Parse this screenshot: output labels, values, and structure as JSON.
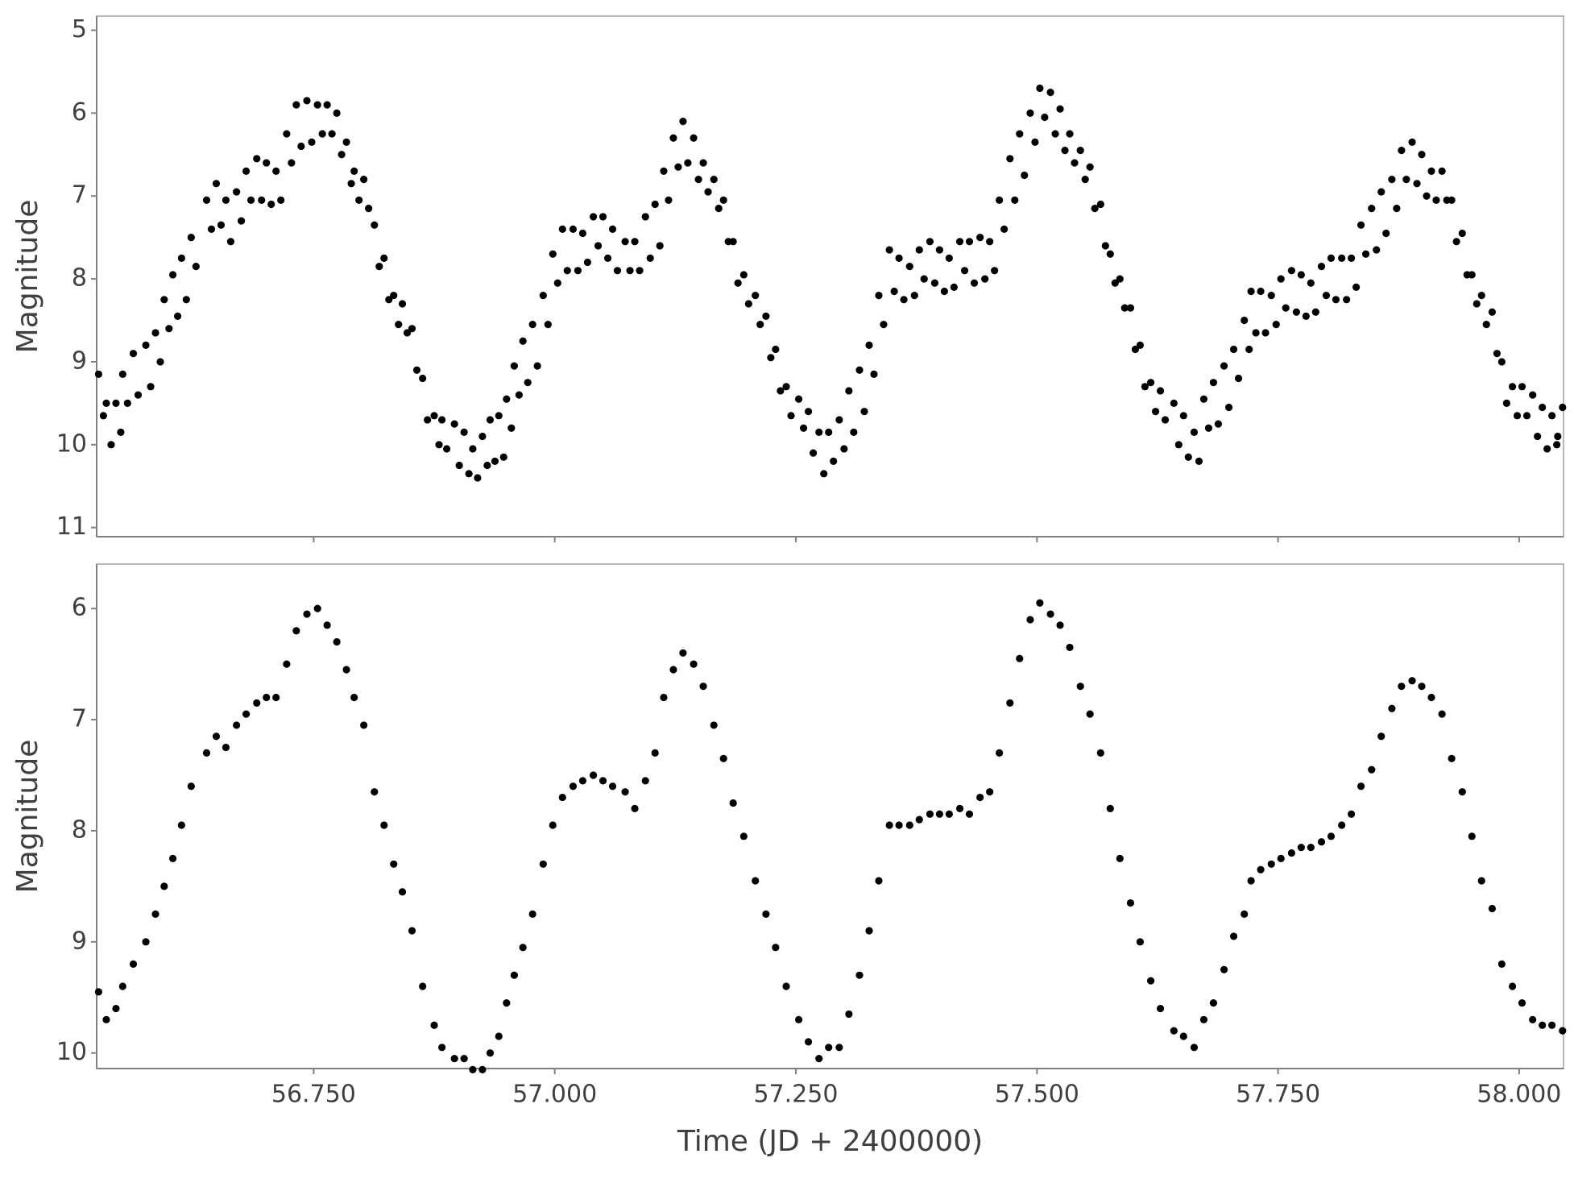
{
  "chart_data": [
    {
      "type": "scatter",
      "y_label": "Magnitude",
      "color": "#000000",
      "xlim": [
        56.525,
        58.046
      ],
      "ylim": [
        11.11,
        4.83
      ],
      "xticks": [
        56.75,
        57,
        57.25,
        57.5,
        57.75,
        58
      ],
      "xtick_labels": false,
      "yticks": [
        5,
        6,
        7,
        8,
        9,
        10,
        11
      ],
      "x": [
        56.527,
        56.532,
        56.535,
        56.54,
        56.545,
        56.55,
        56.552,
        56.557,
        56.563,
        56.568,
        56.576,
        56.581,
        56.586,
        56.591,
        56.595,
        56.6,
        56.604,
        56.609,
        56.613,
        56.618,
        56.623,
        56.628,
        56.639,
        56.644,
        56.649,
        56.654,
        56.659,
        56.664,
        56.67,
        56.675,
        56.68,
        56.685,
        56.691,
        56.696,
        56.701,
        56.706,
        56.711,
        56.716,
        56.722,
        56.727,
        56.732,
        56.737,
        56.743,
        56.748,
        56.754,
        56.759,
        56.764,
        56.769,
        56.774,
        56.779,
        56.784,
        56.789,
        56.792,
        56.797,
        56.802,
        56.807,
        56.813,
        56.818,
        56.823,
        56.828,
        56.833,
        56.838,
        56.842,
        56.847,
        56.852,
        56.857,
        56.863,
        56.868,
        56.875,
        56.88,
        56.883,
        56.888,
        56.896,
        56.901,
        56.906,
        56.911,
        56.915,
        56.92,
        56.925,
        56.93,
        56.933,
        56.938,
        56.942,
        56.947,
        56.95,
        56.955,
        56.958,
        56.963,
        56.967,
        56.972,
        56.977,
        56.982,
        56.988,
        56.993,
        56.998,
        57.003,
        57.008,
        57.013,
        57.019,
        57.024,
        57.029,
        57.034,
        57.04,
        57.045,
        57.05,
        57.055,
        57.06,
        57.065,
        57.073,
        57.078,
        57.083,
        57.088,
        57.094,
        57.099,
        57.104,
        57.109,
        57.113,
        57.118,
        57.123,
        57.128,
        57.133,
        57.138,
        57.144,
        57.149,
        57.154,
        57.159,
        57.165,
        57.17,
        57.175,
        57.18,
        57.185,
        57.19,
        57.196,
        57.201,
        57.208,
        57.213,
        57.219,
        57.224,
        57.229,
        57.234,
        57.24,
        57.245,
        57.253,
        57.258,
        57.263,
        57.268,
        57.274,
        57.279,
        57.284,
        57.289,
        57.295,
        57.3,
        57.305,
        57.31,
        57.316,
        57.321,
        57.326,
        57.331,
        57.336,
        57.341,
        57.347,
        57.352,
        57.357,
        57.362,
        57.368,
        57.373,
        57.378,
        57.383,
        57.389,
        57.394,
        57.399,
        57.404,
        57.409,
        57.414,
        57.42,
        57.425,
        57.43,
        57.435,
        57.441,
        57.446,
        57.451,
        57.456,
        57.461,
        57.466,
        57.472,
        57.477,
        57.482,
        57.487,
        57.493,
        57.498,
        57.503,
        57.508,
        57.514,
        57.519,
        57.524,
        57.529,
        57.534,
        57.539,
        57.545,
        57.55,
        57.555,
        57.56,
        57.566,
        57.571,
        57.576,
        57.581,
        57.586,
        57.591,
        57.597,
        57.602,
        57.607,
        57.612,
        57.618,
        57.623,
        57.628,
        57.633,
        57.642,
        57.647,
        57.652,
        57.657,
        57.663,
        57.668,
        57.673,
        57.678,
        57.683,
        57.688,
        57.694,
        57.699,
        57.704,
        57.709,
        57.715,
        57.72,
        57.722,
        57.727,
        57.732,
        57.737,
        57.743,
        57.748,
        57.753,
        57.758,
        57.764,
        57.769,
        57.774,
        57.779,
        57.784,
        57.789,
        57.795,
        57.8,
        57.805,
        57.81,
        57.816,
        57.821,
        57.826,
        57.831,
        57.836,
        57.841,
        57.847,
        57.852,
        57.857,
        57.862,
        57.868,
        57.873,
        57.878,
        57.883,
        57.889,
        57.894,
        57.899,
        57.904,
        57.909,
        57.914,
        57.92,
        57.925,
        57.93,
        57.935,
        57.941,
        57.946,
        57.951,
        57.956,
        57.961,
        57.966,
        57.972,
        57.977,
        57.982,
        57.987,
        57.993,
        57.998,
        58.003,
        58.008,
        58.014,
        58.019,
        58.024,
        58.029,
        58.034,
        58.039,
        58.045,
        58.04
      ],
      "values": [
        9.15,
        9.65,
        9.5,
        10.0,
        9.5,
        9.85,
        9.15,
        9.5,
        8.9,
        9.4,
        8.8,
        9.3,
        8.65,
        9.0,
        8.25,
        8.6,
        7.95,
        8.45,
        7.75,
        8.25,
        7.5,
        7.85,
        7.05,
        7.4,
        6.85,
        7.35,
        7.05,
        7.55,
        6.95,
        7.3,
        6.7,
        7.05,
        6.55,
        7.05,
        6.6,
        7.1,
        6.7,
        7.05,
        6.25,
        6.6,
        5.9,
        6.4,
        5.85,
        6.35,
        5.9,
        6.25,
        5.9,
        6.25,
        6.0,
        6.5,
        6.35,
        6.85,
        6.7,
        7.05,
        6.8,
        7.15,
        7.35,
        7.85,
        7.75,
        8.25,
        8.2,
        8.55,
        8.3,
        8.65,
        8.6,
        9.1,
        9.2,
        9.7,
        9.65,
        10.0,
        9.7,
        10.05,
        9.75,
        10.25,
        9.85,
        10.35,
        10.05,
        10.4,
        9.9,
        10.25,
        9.7,
        10.2,
        9.65,
        10.15,
        9.45,
        9.8,
        9.05,
        9.4,
        8.75,
        9.25,
        8.55,
        9.05,
        8.2,
        8.55,
        7.7,
        8.05,
        7.4,
        7.9,
        7.4,
        7.9,
        7.45,
        7.8,
        7.25,
        7.6,
        7.25,
        7.75,
        7.4,
        7.9,
        7.55,
        7.9,
        7.55,
        7.9,
        7.25,
        7.75,
        7.1,
        7.6,
        6.7,
        7.05,
        6.3,
        6.65,
        6.1,
        6.6,
        6.3,
        6.8,
        6.6,
        6.95,
        6.8,
        7.15,
        7.05,
        7.55,
        7.55,
        8.05,
        7.95,
        8.3,
        8.2,
        8.55,
        8.45,
        8.95,
        8.85,
        9.35,
        9.3,
        9.65,
        9.45,
        9.8,
        9.6,
        10.1,
        9.85,
        10.35,
        9.85,
        10.2,
        9.7,
        10.05,
        9.35,
        9.85,
        9.1,
        9.6,
        8.8,
        9.15,
        8.2,
        8.55,
        7.65,
        8.15,
        7.75,
        8.25,
        7.85,
        8.2,
        7.65,
        8.0,
        7.55,
        8.05,
        7.65,
        8.15,
        7.75,
        8.1,
        7.55,
        7.9,
        7.55,
        8.05,
        7.5,
        8.0,
        7.55,
        7.9,
        7.05,
        7.4,
        6.55,
        7.05,
        6.25,
        6.75,
        6.0,
        6.35,
        5.7,
        6.05,
        5.75,
        6.25,
        5.95,
        6.45,
        6.25,
        6.6,
        6.45,
        6.8,
        6.65,
        7.15,
        7.1,
        7.6,
        7.7,
        8.05,
        8.0,
        8.35,
        8.35,
        8.85,
        8.8,
        9.3,
        9.25,
        9.6,
        9.35,
        9.7,
        9.5,
        10.0,
        9.65,
        10.15,
        9.85,
        10.2,
        9.45,
        9.8,
        9.25,
        9.75,
        9.05,
        9.55,
        8.85,
        9.2,
        8.5,
        8.85,
        8.15,
        8.65,
        8.15,
        8.65,
        8.2,
        8.55,
        8.0,
        8.35,
        7.9,
        8.4,
        7.95,
        8.45,
        8.05,
        8.4,
        7.85,
        8.2,
        7.75,
        8.25,
        7.75,
        8.25,
        7.75,
        8.1,
        7.35,
        7.7,
        7.15,
        7.65,
        6.95,
        7.45,
        6.8,
        7.15,
        6.45,
        6.8,
        6.35,
        6.85,
        6.5,
        7.0,
        6.7,
        7.05,
        6.7,
        7.05,
        7.05,
        7.55,
        7.45,
        7.95,
        7.95,
        8.3,
        8.2,
        8.55,
        8.4,
        8.9,
        9.0,
        9.5,
        9.3,
        9.65,
        9.3,
        9.65,
        9.4,
        9.9,
        9.55,
        10.05,
        9.65,
        10.0,
        9.55,
        9.9
      ]
    },
    {
      "type": "scatter",
      "y_label": "Magnitude",
      "x_label": "Time (JD + 2400000)",
      "color": "#000000",
      "xlim": [
        56.525,
        58.046
      ],
      "ylim": [
        10.14,
        5.6
      ],
      "xticks": [
        {
          "value": 56.75,
          "label": "56.750"
        },
        {
          "value": 57,
          "label": "57.000"
        },
        {
          "value": 57.25,
          "label": "57.250"
        },
        {
          "value": 57.5,
          "label": "57.500"
        },
        {
          "value": 57.75,
          "label": "57.750"
        },
        {
          "value": 58,
          "label": "58.000"
        }
      ],
      "yticks": [
        6,
        7,
        8,
        9,
        10
      ],
      "x": [
        56.527,
        56.535,
        56.545,
        56.552,
        56.563,
        56.576,
        56.586,
        56.595,
        56.604,
        56.613,
        56.623,
        56.639,
        56.649,
        56.659,
        56.67,
        56.68,
        56.691,
        56.701,
        56.711,
        56.722,
        56.732,
        56.743,
        56.754,
        56.764,
        56.774,
        56.784,
        56.792,
        56.802,
        56.813,
        56.823,
        56.833,
        56.842,
        56.852,
        56.863,
        56.875,
        56.883,
        56.896,
        56.906,
        56.915,
        56.925,
        56.933,
        56.942,
        56.95,
        56.958,
        56.967,
        56.977,
        56.988,
        56.998,
        57.008,
        57.019,
        57.029,
        57.04,
        57.05,
        57.06,
        57.073,
        57.083,
        57.094,
        57.104,
        57.113,
        57.123,
        57.133,
        57.144,
        57.154,
        57.165,
        57.175,
        57.185,
        57.196,
        57.208,
        57.219,
        57.229,
        57.24,
        57.253,
        57.263,
        57.274,
        57.284,
        57.295,
        57.305,
        57.316,
        57.326,
        57.336,
        57.347,
        57.357,
        57.368,
        57.378,
        57.389,
        57.399,
        57.409,
        57.42,
        57.43,
        57.441,
        57.451,
        57.461,
        57.472,
        57.482,
        57.493,
        57.503,
        57.514,
        57.524,
        57.534,
        57.545,
        57.555,
        57.566,
        57.576,
        57.586,
        57.597,
        57.607,
        57.618,
        57.628,
        57.642,
        57.652,
        57.663,
        57.673,
        57.683,
        57.694,
        57.704,
        57.715,
        57.722,
        57.732,
        57.743,
        57.753,
        57.764,
        57.774,
        57.784,
        57.795,
        57.805,
        57.816,
        57.826,
        57.836,
        57.847,
        57.857,
        57.868,
        57.878,
        57.889,
        57.899,
        57.909,
        57.92,
        57.93,
        57.941,
        57.951,
        57.961,
        57.972,
        57.982,
        57.993,
        58.003,
        58.014,
        58.024,
        58.034,
        58.045
      ],
      "values": [
        9.45,
        9.7,
        9.6,
        9.4,
        9.2,
        9.0,
        8.75,
        8.5,
        8.25,
        7.95,
        7.6,
        7.3,
        7.15,
        7.25,
        7.05,
        6.95,
        6.85,
        6.8,
        6.8,
        6.5,
        6.2,
        6.05,
        6.0,
        6.15,
        6.3,
        6.55,
        6.8,
        7.05,
        7.65,
        7.95,
        8.3,
        8.55,
        8.9,
        9.4,
        9.75,
        9.95,
        10.05,
        10.05,
        10.15,
        10.15,
        10.0,
        9.85,
        9.55,
        9.3,
        9.05,
        8.75,
        8.3,
        7.95,
        7.7,
        7.6,
        7.55,
        7.5,
        7.55,
        7.6,
        7.65,
        7.8,
        7.55,
        7.3,
        6.8,
        6.55,
        6.4,
        6.5,
        6.7,
        7.05,
        7.35,
        7.75,
        8.05,
        8.45,
        8.75,
        9.05,
        9.4,
        9.7,
        9.9,
        10.05,
        9.95,
        9.95,
        9.65,
        9.3,
        8.9,
        8.45,
        7.95,
        7.95,
        7.95,
        7.9,
        7.85,
        7.85,
        7.85,
        7.8,
        7.85,
        7.7,
        7.65,
        7.3,
        6.85,
        6.45,
        6.1,
        5.95,
        6.05,
        6.15,
        6.35,
        6.7,
        6.95,
        7.3,
        7.8,
        8.25,
        8.65,
        9.0,
        9.35,
        9.6,
        9.8,
        9.85,
        9.95,
        9.7,
        9.55,
        9.25,
        8.95,
        8.75,
        8.45,
        8.35,
        8.3,
        8.25,
        8.2,
        8.15,
        8.15,
        8.1,
        8.05,
        7.95,
        7.85,
        7.6,
        7.45,
        7.15,
        6.9,
        6.7,
        6.65,
        6.7,
        6.8,
        6.95,
        7.35,
        7.65,
        8.05,
        8.45,
        8.7,
        9.2,
        9.4,
        9.55,
        9.7,
        9.75,
        9.75,
        9.8
      ]
    }
  ]
}
